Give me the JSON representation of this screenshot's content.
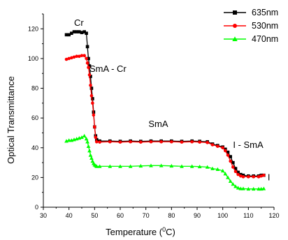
{
  "chart_data": {
    "type": "line",
    "xlabel": "Temperature (°C)",
    "xlabel_parts": {
      "prefix": "Temperature (",
      "sup": "0",
      "suffix": "C)"
    },
    "ylabel": "Optical Transmittance",
    "xlim": [
      30,
      120
    ],
    "ylim": [
      0,
      130
    ],
    "xticks": [
      "30",
      "40",
      "50",
      "60",
      "70",
      "80",
      "90",
      "100",
      "110",
      "120"
    ],
    "yticks": [
      "0",
      "20",
      "40",
      "60",
      "80",
      "100",
      "120"
    ],
    "legend_position": "top-right",
    "annotations": [
      {
        "text": "Cr",
        "x": 42,
        "y": 122
      },
      {
        "text": "SmA - Cr",
        "x": 48,
        "y": 91
      },
      {
        "text": "SmA",
        "x": 71,
        "y": 54
      },
      {
        "text": "I - SmA",
        "x": 104,
        "y": 40
      },
      {
        "text": "I",
        "x": 117.5,
        "y": 18
      }
    ],
    "series": [
      {
        "name": "635nm",
        "color": "#000000",
        "marker": "square",
        "points": [
          [
            39,
            116
          ],
          [
            40,
            116
          ],
          [
            41,
            117
          ],
          [
            42,
            118
          ],
          [
            43,
            118
          ],
          [
            44,
            118
          ],
          [
            45,
            117.5
          ],
          [
            46,
            118
          ],
          [
            46.8,
            117
          ],
          [
            47.2,
            108
          ],
          [
            47.6,
            100
          ],
          [
            48,
            95
          ],
          [
            48.4,
            88
          ],
          [
            48.8,
            80
          ],
          [
            49.2,
            73
          ],
          [
            49.6,
            64
          ],
          [
            50,
            54
          ],
          [
            50.4,
            48
          ],
          [
            50.8,
            45.5
          ],
          [
            52,
            44.5
          ],
          [
            56,
            44.5
          ],
          [
            60,
            44.3
          ],
          [
            64,
            44.5
          ],
          [
            68,
            44.3
          ],
          [
            72,
            44.5
          ],
          [
            76,
            44.5
          ],
          [
            80,
            44.5
          ],
          [
            84,
            44.3
          ],
          [
            88,
            44.5
          ],
          [
            91,
            44.3
          ],
          [
            94,
            44
          ],
          [
            96,
            42.5
          ],
          [
            98,
            41.5
          ],
          [
            100,
            40.5
          ],
          [
            101,
            39
          ],
          [
            102,
            37
          ],
          [
            103,
            34
          ],
          [
            104,
            30
          ],
          [
            105,
            26
          ],
          [
            106,
            23.5
          ],
          [
            107,
            22
          ],
          [
            108,
            21.5
          ],
          [
            110,
            21
          ],
          [
            112,
            21
          ],
          [
            114,
            21
          ],
          [
            115,
            21.5
          ],
          [
            116,
            21.5
          ]
        ]
      },
      {
        "name": "530nm",
        "color": "#ff0000",
        "marker": "circle",
        "points": [
          [
            39,
            99.5
          ],
          [
            40,
            100
          ],
          [
            41,
            100.5
          ],
          [
            42,
            101
          ],
          [
            43,
            101.5
          ],
          [
            44,
            101.5
          ],
          [
            45,
            102
          ],
          [
            46,
            102
          ],
          [
            46.8,
            100
          ],
          [
            47.2,
            97
          ],
          [
            47.6,
            94
          ],
          [
            48,
            89
          ],
          [
            48.4,
            82
          ],
          [
            48.8,
            75
          ],
          [
            49.2,
            70
          ],
          [
            49.6,
            62
          ],
          [
            50,
            54
          ],
          [
            50.4,
            47
          ],
          [
            50.8,
            44
          ],
          [
            52,
            43.8
          ],
          [
            56,
            44
          ],
          [
            60,
            43.8
          ],
          [
            64,
            44
          ],
          [
            68,
            43.8
          ],
          [
            72,
            44
          ],
          [
            76,
            44
          ],
          [
            80,
            44
          ],
          [
            84,
            43.8
          ],
          [
            88,
            44
          ],
          [
            91,
            43.8
          ],
          [
            94,
            43.5
          ],
          [
            96,
            42
          ],
          [
            98,
            41
          ],
          [
            100,
            40
          ],
          [
            101,
            38
          ],
          [
            102,
            35
          ],
          [
            103,
            31
          ],
          [
            104,
            27
          ],
          [
            105,
            24
          ],
          [
            106,
            22
          ],
          [
            107,
            21
          ],
          [
            108,
            20.5
          ],
          [
            110,
            20.5
          ],
          [
            112,
            20.5
          ],
          [
            114,
            20.5
          ],
          [
            115,
            21
          ],
          [
            116,
            21.5
          ]
        ]
      },
      {
        "name": "470nm",
        "color": "#00ff00",
        "marker": "triangle",
        "points": [
          [
            39,
            44.5
          ],
          [
            40,
            45
          ],
          [
            41,
            45
          ],
          [
            42,
            45.5
          ],
          [
            43,
            46
          ],
          [
            44,
            46.5
          ],
          [
            45,
            47
          ],
          [
            46,
            48
          ],
          [
            46.8,
            46
          ],
          [
            47.2,
            44
          ],
          [
            47.6,
            41
          ],
          [
            48,
            38
          ],
          [
            48.4,
            35
          ],
          [
            48.8,
            33
          ],
          [
            49.2,
            31
          ],
          [
            49.6,
            29.5
          ],
          [
            50,
            28.5
          ],
          [
            50.4,
            28
          ],
          [
            50.8,
            27.5
          ],
          [
            52,
            27.5
          ],
          [
            56,
            27.5
          ],
          [
            60,
            27.5
          ],
          [
            64,
            27.5
          ],
          [
            68,
            27.8
          ],
          [
            72,
            28
          ],
          [
            76,
            28
          ],
          [
            80,
            27.8
          ],
          [
            84,
            27.5
          ],
          [
            88,
            27.5
          ],
          [
            91,
            27.3
          ],
          [
            94,
            27
          ],
          [
            96,
            26
          ],
          [
            98,
            25.5
          ],
          [
            100,
            24.5
          ],
          [
            101,
            22.5
          ],
          [
            102,
            20
          ],
          [
            103,
            17.5
          ],
          [
            104,
            15.5
          ],
          [
            105,
            14
          ],
          [
            106,
            13
          ],
          [
            107,
            12.5
          ],
          [
            108,
            12.5
          ],
          [
            110,
            12.3
          ],
          [
            112,
            12.3
          ],
          [
            114,
            12.3
          ],
          [
            115,
            12.3
          ],
          [
            116,
            12.5
          ]
        ]
      }
    ]
  }
}
